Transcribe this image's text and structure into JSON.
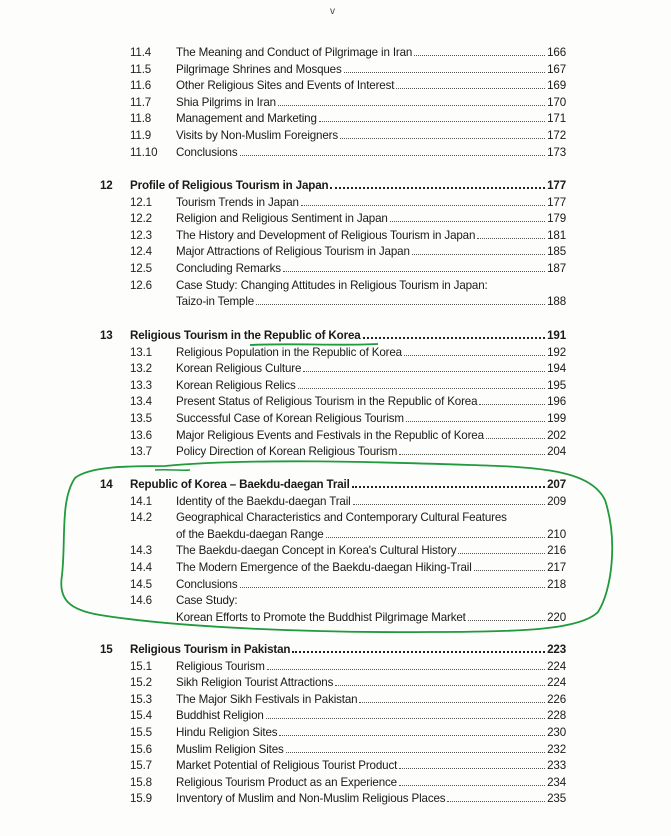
{
  "folio": "v",
  "annotation_color": "#1f9a3c",
  "chapters": [
    {
      "num": "",
      "title": "",
      "page": "",
      "items": [
        {
          "num": "11.4",
          "lines": [
            "The Meaning and Conduct of Pilgrimage in Iran"
          ],
          "page": "166"
        },
        {
          "num": "11.5",
          "lines": [
            "Pilgrimage Shrines and Mosques"
          ],
          "page": "167"
        },
        {
          "num": "11.6",
          "lines": [
            "Other Religious Sites and Events of Interest"
          ],
          "page": "169"
        },
        {
          "num": "11.7",
          "lines": [
            "Shia Pilgrims in Iran"
          ],
          "page": "170"
        },
        {
          "num": "11.8",
          "lines": [
            "Management and Marketing"
          ],
          "page": "171"
        },
        {
          "num": "11.9",
          "lines": [
            "Visits by Non-Muslim Foreigners"
          ],
          "page": "172"
        },
        {
          "num": "11.10",
          "lines": [
            "Conclusions"
          ],
          "page": "173"
        }
      ]
    },
    {
      "num": "12",
      "title": "Profile of Religious Tourism in Japan",
      "page": "177",
      "items": [
        {
          "num": "12.1",
          "lines": [
            "Tourism Trends in Japan"
          ],
          "page": "177"
        },
        {
          "num": "12.2",
          "lines": [
            "Religion and Religious Sentiment in Japan"
          ],
          "page": "179"
        },
        {
          "num": "12.3",
          "lines": [
            "The History and Development of Religious Tourism in Japan"
          ],
          "page": "181"
        },
        {
          "num": "12.4",
          "lines": [
            "Major Attractions of Religious Tourism in Japan"
          ],
          "page": "185"
        },
        {
          "num": "12.5",
          "lines": [
            "Concluding Remarks"
          ],
          "page": "187"
        },
        {
          "num": "12.6",
          "lines": [
            "Case Study: Changing Attitudes in Religious Tourism in Japan:",
            "Taizo-in Temple"
          ],
          "page": "188"
        }
      ]
    },
    {
      "num": "13",
      "title": "Religious Tourism in the Republic of Korea",
      "page": "191",
      "items": [
        {
          "num": "13.1",
          "lines": [
            "Religious Population in the Republic of Korea"
          ],
          "page": "192"
        },
        {
          "num": "13.2",
          "lines": [
            "Korean Religious Culture"
          ],
          "page": "194"
        },
        {
          "num": "13.3",
          "lines": [
            "Korean Religious Relics"
          ],
          "page": "195"
        },
        {
          "num": "13.4",
          "lines": [
            "Present Status of Religious Tourism in the Republic of Korea"
          ],
          "page": "196"
        },
        {
          "num": "13.5",
          "lines": [
            "Successful Case of Korean Religious Tourism"
          ],
          "page": "199"
        },
        {
          "num": "13.6",
          "lines": [
            "Major Religious Events and Festivals in the Republic of Korea"
          ],
          "page": "202"
        },
        {
          "num": "13.7",
          "lines": [
            "Policy Direction of Korean Religious Tourism"
          ],
          "page": "204"
        }
      ]
    },
    {
      "num": "14",
      "title": "Republic of Korea – Baekdu-daegan Trail",
      "page": "207",
      "items": [
        {
          "num": "14.1",
          "lines": [
            "Identity of the Baekdu-daegan Trail"
          ],
          "page": "209"
        },
        {
          "num": "14.2",
          "lines": [
            "Geographical Characteristics and Contemporary Cultural Features",
            "of the Baekdu-daegan Range"
          ],
          "page": "210"
        },
        {
          "num": "14.3",
          "lines": [
            "The Baekdu-daegan Concept in Korea's Cultural History"
          ],
          "page": "216"
        },
        {
          "num": "14.4",
          "lines": [
            "The Modern Emergence of the Baekdu-daegan Hiking-Trail"
          ],
          "page": "217"
        },
        {
          "num": "14.5",
          "lines": [
            "Conclusions"
          ],
          "page": "218"
        },
        {
          "num": "14.6",
          "lines": [
            "Case Study:",
            "Korean Efforts to Promote the Buddhist Pilgrimage Market"
          ],
          "page": "220"
        }
      ]
    },
    {
      "num": "15",
      "title": "Religious Tourism in Pakistan",
      "page": "223",
      "items": [
        {
          "num": "15.1",
          "lines": [
            "Religious Tourism"
          ],
          "page": "224"
        },
        {
          "num": "15.2",
          "lines": [
            "Sikh Religion Tourist Attractions"
          ],
          "page": "224"
        },
        {
          "num": "15.3",
          "lines": [
            "The Major Sikh Festivals in Pakistan"
          ],
          "page": "226"
        },
        {
          "num": "15.4",
          "lines": [
            "Buddhist Religion"
          ],
          "page": "228"
        },
        {
          "num": "15.5",
          "lines": [
            "Hindu Religion Sites"
          ],
          "page": "230"
        },
        {
          "num": "15.6",
          "lines": [
            "Muslim Religion Sites"
          ],
          "page": "232"
        },
        {
          "num": "15.7",
          "lines": [
            "Market Potential of Religious Tourist Product"
          ],
          "page": "233"
        },
        {
          "num": "15.8",
          "lines": [
            "Religious Tourism Product as an Experience"
          ],
          "page": "234"
        },
        {
          "num": "15.9",
          "lines": [
            "Inventory of Muslim and Non-Muslim Religious Places"
          ],
          "page": "235"
        }
      ]
    }
  ]
}
